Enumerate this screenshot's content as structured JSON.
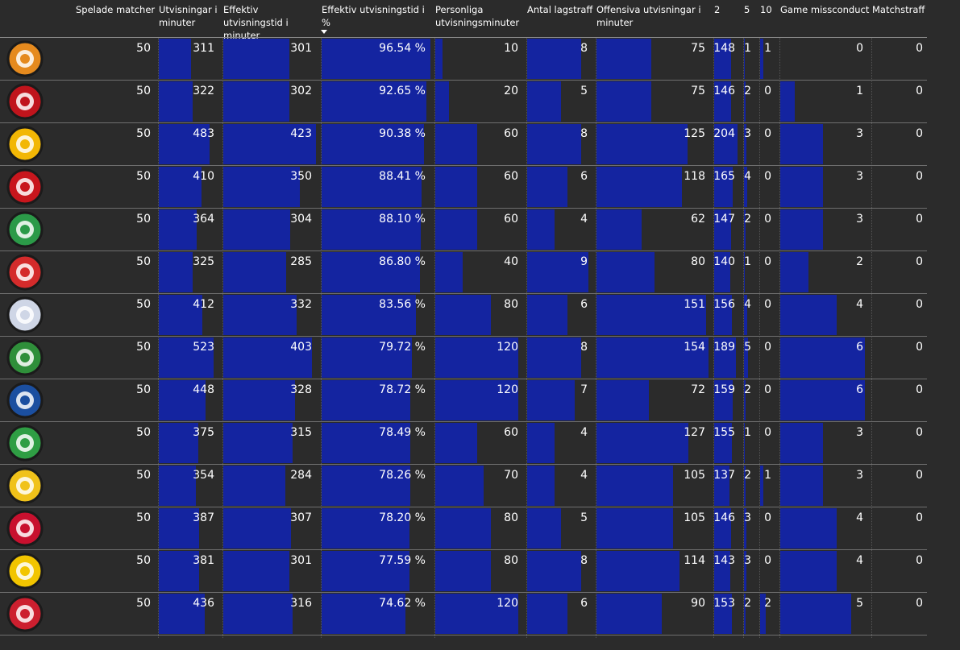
{
  "headers": {
    "played": "Spelade matcher",
    "pim": "Utvisningar i minuter",
    "eff_pim": "Effektiv utvisningstid i minuter",
    "eff_pct": "Effektiv utvisningstid i %",
    "personal": "Personliga utvisningsminuter",
    "team_pen": "Antal lagstraff",
    "off_pim": "Offensiva utvisningar i minuter",
    "p2": "2",
    "p5": "5",
    "p10": "10",
    "gm": "Game missconduct",
    "match": "Matchstraff"
  },
  "colors": {
    "background": "#2b2b2b",
    "bar": "#1424a0",
    "text": "#ffffff"
  },
  "rows": [
    {
      "team_logo": "Brynäs IF logo",
      "played": "50",
      "pim": "311",
      "eff_pim": "301",
      "eff_pct": "96.54 %",
      "personal": "10",
      "team_pen": "8",
      "off_pim": "75",
      "p2": "148",
      "p5": "1",
      "p10": "1",
      "gm": "0",
      "match": "0"
    },
    {
      "team_logo": "Malmö Redhawks logo",
      "played": "50",
      "pim": "322",
      "eff_pim": "302",
      "eff_pct": "92.65 %",
      "personal": "20",
      "team_pen": "5",
      "off_pim": "75",
      "p2": "146",
      "p5": "2",
      "p10": "0",
      "gm": "1",
      "match": "0"
    },
    {
      "team_logo": "Skellefteå AIK logo",
      "played": "50",
      "pim": "483",
      "eff_pim": "423",
      "eff_pct": "90.38 %",
      "personal": "60",
      "team_pen": "8",
      "off_pim": "125",
      "p2": "204",
      "p5": "3",
      "p10": "0",
      "gm": "3",
      "match": "0"
    },
    {
      "team_logo": "Luleå Hockey logo",
      "played": "50",
      "pim": "410",
      "eff_pim": "350",
      "eff_pct": "88.41 %",
      "personal": "60",
      "team_pen": "6",
      "off_pim": "118",
      "p2": "165",
      "p5": "4",
      "p10": "0",
      "gm": "3",
      "match": "0"
    },
    {
      "team_logo": "Frölunda HC logo",
      "played": "50",
      "pim": "364",
      "eff_pim": "304",
      "eff_pct": "88.10 %",
      "personal": "60",
      "team_pen": "4",
      "off_pim": "62",
      "p2": "147",
      "p5": "2",
      "p10": "0",
      "gm": "3",
      "match": "0"
    },
    {
      "team_logo": "Timrå IK logo",
      "played": "50",
      "pim": "325",
      "eff_pim": "285",
      "eff_pct": "86.80 %",
      "personal": "40",
      "team_pen": "9",
      "off_pim": "80",
      "p2": "140",
      "p5": "1",
      "p10": "0",
      "gm": "2",
      "match": "0"
    },
    {
      "team_logo": "Linköping HC logo",
      "played": "50",
      "pim": "412",
      "eff_pim": "332",
      "eff_pct": "83.56 %",
      "personal": "80",
      "team_pen": "6",
      "off_pim": "151",
      "p2": "156",
      "p5": "4",
      "p10": "0",
      "gm": "4",
      "match": "0"
    },
    {
      "team_logo": "Färjestad BK logo",
      "played": "50",
      "pim": "523",
      "eff_pim": "403",
      "eff_pct": "79.72 %",
      "personal": "120",
      "team_pen": "8",
      "off_pim": "154",
      "p2": "189",
      "p5": "5",
      "p10": "0",
      "gm": "6",
      "match": "0"
    },
    {
      "team_logo": "Leksands IF logo",
      "played": "50",
      "pim": "448",
      "eff_pim": "328",
      "eff_pct": "78.72 %",
      "personal": "120",
      "team_pen": "7",
      "off_pim": "72",
      "p2": "159",
      "p5": "2",
      "p10": "0",
      "gm": "6",
      "match": "0"
    },
    {
      "team_logo": "Rögle BK logo",
      "played": "50",
      "pim": "375",
      "eff_pim": "315",
      "eff_pct": "78.49 %",
      "personal": "60",
      "team_pen": "4",
      "off_pim": "127",
      "p2": "155",
      "p5": "1",
      "p10": "0",
      "gm": "3",
      "match": "0"
    },
    {
      "team_logo": "Brynäs IF clover logo",
      "played": "50",
      "pim": "354",
      "eff_pim": "284",
      "eff_pct": "78.26 %",
      "personal": "70",
      "team_pen": "4",
      "off_pim": "105",
      "p2": "137",
      "p5": "2",
      "p10": "1",
      "gm": "3",
      "match": "0"
    },
    {
      "team_logo": "Örebro HK logo",
      "played": "50",
      "pim": "387",
      "eff_pim": "307",
      "eff_pct": "78.20 %",
      "personal": "80",
      "team_pen": "5",
      "off_pim": "105",
      "p2": "146",
      "p5": "3",
      "p10": "0",
      "gm": "4",
      "match": "0"
    },
    {
      "team_logo": "HV71 logo",
      "played": "50",
      "pim": "381",
      "eff_pim": "301",
      "eff_pct": "77.59 %",
      "personal": "80",
      "team_pen": "8",
      "off_pim": "114",
      "p2": "143",
      "p5": "3",
      "p10": "0",
      "gm": "4",
      "match": "0"
    },
    {
      "team_logo": "MoDo Hockey logo",
      "played": "50",
      "pim": "436",
      "eff_pim": "316",
      "eff_pct": "74.62 %",
      "personal": "120",
      "team_pen": "6",
      "off_pim": "90",
      "p2": "153",
      "p5": "2",
      "p10": "2",
      "gm": "5",
      "match": "0"
    }
  ]
}
